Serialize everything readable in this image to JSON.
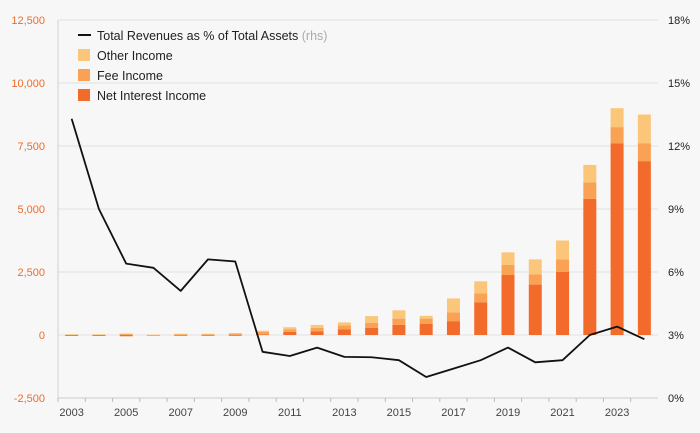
{
  "chart_data": {
    "type": "bar",
    "x": [
      2003,
      2004,
      2005,
      2006,
      2007,
      2008,
      2009,
      2010,
      2011,
      2012,
      2013,
      2014,
      2015,
      2016,
      2017,
      2018,
      2019,
      2020,
      2021,
      2022,
      2023,
      2024
    ],
    "x_tick_labels": [
      "2003",
      "2005",
      "2007",
      "2009",
      "2011",
      "2013",
      "2015",
      "2017",
      "2019",
      "2021",
      "2023"
    ],
    "y_left": {
      "lim": [
        -2500,
        12500
      ],
      "ticks": [
        -2500,
        0,
        2500,
        5000,
        7500,
        10000,
        12500
      ],
      "tick_labels": [
        "-2,500",
        "0",
        "2,500",
        "5,000",
        "7,500",
        "10,000",
        "12,500"
      ]
    },
    "y_right": {
      "lim": [
        0,
        18
      ],
      "ticks": [
        0,
        3,
        6,
        9,
        12,
        15,
        18
      ],
      "tick_labels": [
        "0%",
        "3%",
        "6%",
        "9%",
        "12%",
        "15%",
        "18%"
      ]
    },
    "series": [
      {
        "name": "Net Interest Income",
        "kind": "bar",
        "axis": "left",
        "color": "#f26b2a",
        "values": [
          -40,
          -40,
          -50,
          -30,
          -20,
          -20,
          -20,
          30,
          130,
          150,
          230,
          280,
          400,
          450,
          550,
          1300,
          2380,
          2000,
          2500,
          5400,
          7600,
          6900
        ]
      },
      {
        "name": "Fee Income",
        "kind": "bar",
        "axis": "left",
        "color": "#f9a154",
        "values": [
          20,
          20,
          40,
          10,
          30,
          30,
          40,
          90,
          100,
          130,
          150,
          200,
          250,
          200,
          350,
          350,
          400,
          400,
          500,
          650,
          650,
          700
        ]
      },
      {
        "name": "Other Income",
        "kind": "bar",
        "axis": "left",
        "color": "#fbc67a",
        "values": [
          10,
          10,
          20,
          10,
          20,
          20,
          40,
          50,
          80,
          120,
          120,
          270,
          330,
          110,
          550,
          480,
          500,
          600,
          750,
          700,
          750,
          1150
        ]
      },
      {
        "name": "Total Revenues as % of Total Assets",
        "suffix": "(rhs)",
        "kind": "line",
        "axis": "right",
        "color": "#111111",
        "values": [
          13.3,
          9.0,
          6.4,
          6.2,
          5.1,
          6.6,
          6.5,
          2.2,
          2.0,
          2.4,
          1.96,
          1.94,
          1.8,
          1.0,
          1.4,
          1.8,
          2.4,
          1.7,
          1.8,
          3.0,
          3.4,
          2.8
        ]
      }
    ],
    "grid": true,
    "legend_position": "top-left"
  }
}
